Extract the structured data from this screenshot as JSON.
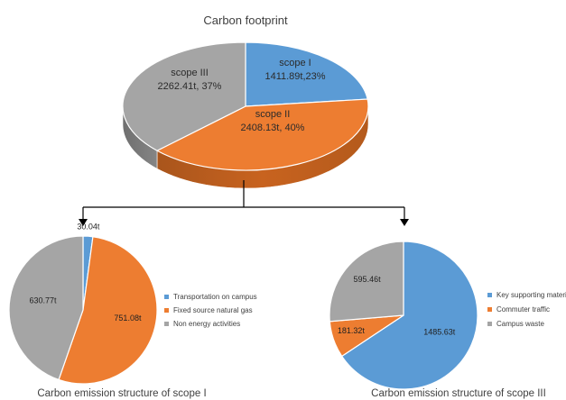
{
  "chart_data": [
    {
      "type": "pie",
      "title": "Carbon footprint",
      "categories": [
        "scope I",
        "scope II",
        "scope III"
      ],
      "values": [
        1411.89,
        2408.13,
        2262.41
      ],
      "labels": [
        "scope I\n1411.89t,23%",
        "scope II\n2408.13t, 40%",
        "scope III\n2262.41t, 37%"
      ],
      "colors": [
        "#5b9bd5",
        "#ed7d31",
        "#a5a5a5"
      ]
    },
    {
      "type": "pie",
      "title": "Carbon emission structure of scope I",
      "categories": [
        "Transportation on campus",
        "Fixed source natural gas",
        "Non energy activities"
      ],
      "values": [
        30.04,
        751.08,
        630.77
      ],
      "labels": [
        "30.04t",
        "751.08t",
        "630.77t"
      ],
      "colors": [
        "#5b9bd5",
        "#ed7d31",
        "#a5a5a5"
      ],
      "legend": "right"
    },
    {
      "type": "pie",
      "title": "Carbon emission structure of scope III",
      "categories": [
        "Key supporting materials",
        "Commuter traffic",
        "Campus waste"
      ],
      "values": [
        1485.63,
        181.32,
        595.46
      ],
      "labels": [
        "1485.63t",
        "181.32t",
        "595.46t"
      ],
      "colors": [
        "#5b9bd5",
        "#ed7d31",
        "#a5a5a5"
      ],
      "legend": "right"
    }
  ]
}
